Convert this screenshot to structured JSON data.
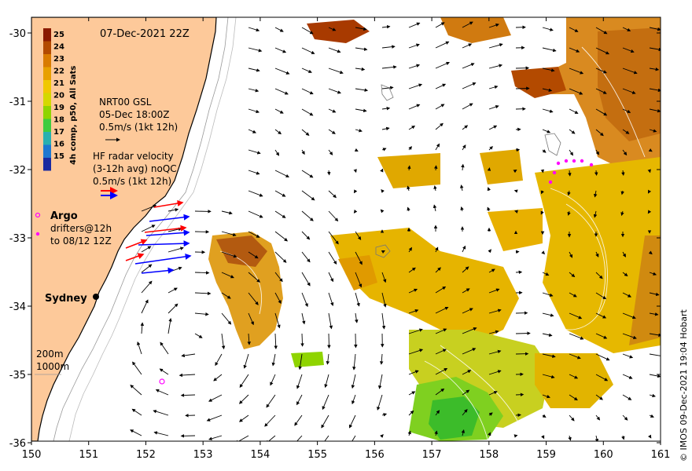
{
  "map": {
    "timestamp": "07-Dec-2021 22Z",
    "x_ticks": [
      "150",
      "151",
      "152",
      "153",
      "154",
      "155",
      "156",
      "157",
      "158",
      "159",
      "160",
      "161"
    ],
    "y_ticks": [
      "-30",
      "-31",
      "-32",
      "-33",
      "-34",
      "-35",
      "-36"
    ],
    "city_label": "Sydney",
    "colors": {
      "land": "#fdc99a",
      "coast": "#000000",
      "ocean": "#ffffff",
      "argo": "#ff00ff",
      "radar_a": "#ff0000",
      "radar_b": "#0000ff"
    }
  },
  "colorbar": {
    "title": "4h comp, p50, All Sats",
    "labels": [
      "25",
      "24",
      "23",
      "22",
      "21",
      "20",
      "19",
      "18",
      "17",
      "16",
      "15"
    ],
    "colors": [
      "#8b1a00",
      "#b34a00",
      "#d97b00",
      "#e8a000",
      "#f0c800",
      "#d4d800",
      "#8fd400",
      "#3fcc3f",
      "#2ab0b0",
      "#1e78d0",
      "#1a2aa0"
    ]
  },
  "legend": {
    "gsl_line1": "NRT00 GSL",
    "gsl_line2": "05-Dec 18:00Z",
    "gsl_line3": "0.5m/s (1kt 12h)",
    "hf_line1": "HF radar velocity",
    "hf_line2": "(3-12h avg) noQC",
    "hf_line3": "0.5m/s (1kt 12h)",
    "argo": "Argo",
    "drifters_line1": "drifters@12h",
    "drifters_line2": "to 08/12 12Z",
    "contour_200": "200m",
    "contour_1000": "1000m"
  },
  "credit": "© IMOS 09-Dec-2021 19:04 Hobart"
}
